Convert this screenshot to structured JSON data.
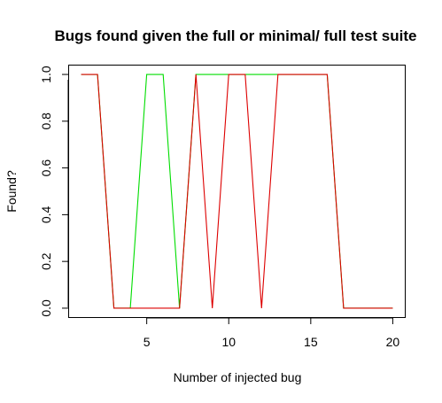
{
  "chart_data": {
    "type": "line",
    "title": "Bugs found given the full or minimal/ full test suite",
    "xlabel": "Number of injected bug",
    "ylabel": "Found?",
    "x": [
      1,
      2,
      3,
      4,
      5,
      6,
      7,
      8,
      9,
      10,
      11,
      12,
      13,
      14,
      15,
      16,
      17,
      18,
      19,
      20
    ],
    "xlim": [
      0.24,
      20.76
    ],
    "ylim": [
      -0.04,
      1.04
    ],
    "xticks": [
      5,
      10,
      15,
      20
    ],
    "yticks": [
      0.0,
      0.2,
      0.4,
      0.6,
      0.8,
      1.0
    ],
    "xtick_labels": [
      "5",
      "10",
      "15",
      "20"
    ],
    "ytick_labels": [
      "0.0",
      "0.2",
      "0.4",
      "0.6",
      "0.8",
      "1.0"
    ],
    "grid": false,
    "series": [
      {
        "color": "#00dd00",
        "values": [
          1,
          1,
          0,
          0,
          1,
          1,
          0,
          1,
          1,
          1,
          1,
          1,
          1,
          1,
          1,
          1,
          0,
          0,
          0,
          0
        ]
      },
      {
        "color": "#dd0000",
        "values": [
          1,
          1,
          0,
          0,
          0,
          0,
          0,
          1,
          0,
          1,
          1,
          0,
          1,
          1,
          1,
          1,
          0,
          0,
          0,
          0
        ]
      }
    ]
  }
}
